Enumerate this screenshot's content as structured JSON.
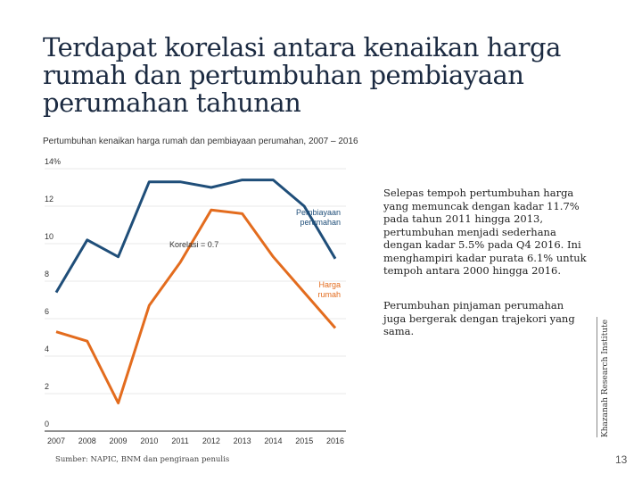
{
  "title": "Terdapat korelasi antara kenaikan harga rumah dan pertumbuhan pembiayaan perumahan tahunan",
  "subtitle": "Pertumbuhan kenaikan harga rumah dan pembiayaan perumahan, 2007 – 2016",
  "chart_data": {
    "type": "line",
    "x": [
      2007,
      2008,
      2009,
      2010,
      2011,
      2012,
      2013,
      2014,
      2015,
      2016
    ],
    "x_tick_labels": [
      "2007",
      "2008",
      "2009",
      "2010",
      "2011",
      "2012",
      "2013",
      "2014",
      "2015",
      "2016"
    ],
    "y_tick_labels": [
      "0",
      "2",
      "4",
      "6",
      "8",
      "10",
      "12",
      "14%"
    ],
    "y_ticks": [
      0,
      2,
      4,
      6,
      8,
      10,
      12,
      14
    ],
    "ylim": [
      0,
      14
    ],
    "series": [
      {
        "name": "Pembiayaan perumahan",
        "label_lines": [
          "Pembiayaan",
          "perumahan"
        ],
        "color": "#1f4e79",
        "x": [
          2007,
          2008,
          2009,
          2010,
          2011,
          2012,
          2013,
          2014,
          2015,
          2016
        ],
        "values": [
          7.4,
          10.2,
          9.3,
          13.3,
          13.3,
          13.0,
          13.4,
          13.4,
          12.0,
          9.2
        ]
      },
      {
        "name": "Harga rumah",
        "label_lines": [
          "Harga",
          "rumah"
        ],
        "color": "#e36c1e",
        "x": [
          2007,
          2008,
          2009,
          2010,
          2011,
          2012,
          2013,
          2014,
          2015,
          2016
        ],
        "values": [
          5.3,
          4.8,
          1.5,
          6.7,
          9.0,
          11.8,
          11.6,
          9.3,
          7.4,
          5.5
        ]
      }
    ],
    "annotation": "Korelasi = 0.7"
  },
  "narrative": {
    "paragraph1": "Selepas tempoh pertumbuhan harga yang memuncak dengan kadar 11.7% pada tahun 2011 hingga 2013, pertumbuhan menjadi sederhana dengan kadar 5.5% pada Q4 2016. Ini menghampiri kadar purata 6.1% untuk tempoh antara 2000 hingga 2016.",
    "paragraph2": "Perumbuhan pinjaman perumahan juga bergerak dengan trajekori yang sama."
  },
  "side_label": "Khazanah Research Institute",
  "source": "Sumber: NAPIC, BNM dan pengiraan penulis",
  "page_number": "13"
}
